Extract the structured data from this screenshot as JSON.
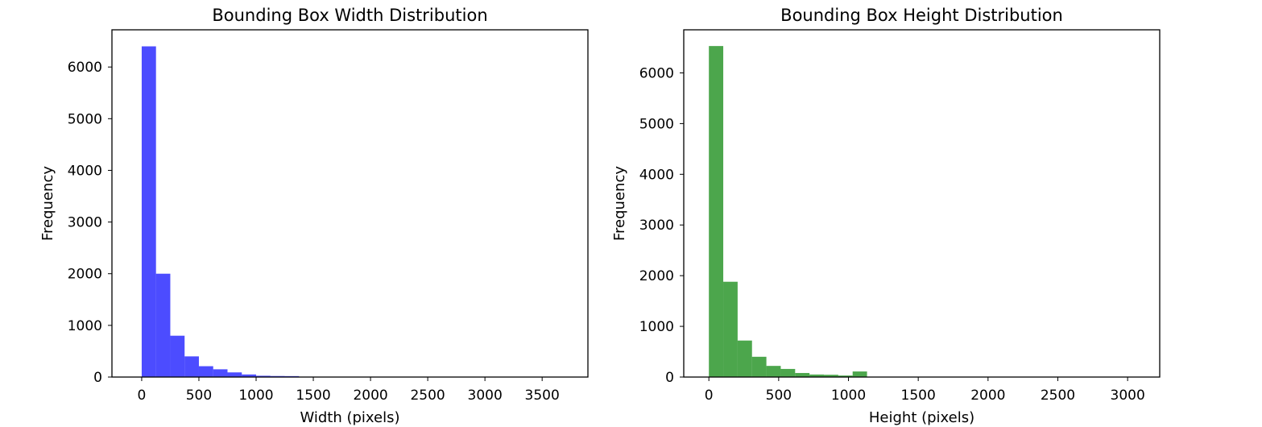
{
  "chart_data": [
    {
      "type": "bar",
      "title": "Bounding Box Width Distribution",
      "xlabel": "Width (pixels)",
      "ylabel": "Frequency",
      "xlim": [
        -260,
        3900
      ],
      "ylim": [
        0,
        6720
      ],
      "xticks": [
        0,
        500,
        1000,
        1500,
        2000,
        2500,
        3000,
        3500
      ],
      "yticks": [
        0,
        1000,
        2000,
        3000,
        4000,
        5000,
        6000
      ],
      "bin_width": 125,
      "bin_start": 0,
      "values": [
        6400,
        2000,
        800,
        400,
        210,
        150,
        90,
        50,
        25,
        20,
        18,
        8,
        5,
        3,
        2,
        2,
        1,
        1,
        1,
        1,
        1,
        1,
        1,
        1,
        1,
        1,
        1,
        1,
        1,
        1
      ],
      "color": "#0000ff",
      "opacity": 0.7,
      "grid": false,
      "legend": "none"
    },
    {
      "type": "bar",
      "title": "Bounding Box Height Distribution",
      "xlabel": "Height (pixels)",
      "ylabel": "Frequency",
      "xlim": [
        -180,
        3230
      ],
      "ylim": [
        0,
        6850
      ],
      "xticks": [
        0,
        500,
        1000,
        1500,
        2000,
        2500,
        3000
      ],
      "yticks": [
        0,
        1000,
        2000,
        3000,
        4000,
        5000,
        6000
      ],
      "bin_width": 103,
      "bin_start": 0,
      "values": [
        6530,
        1880,
        720,
        400,
        220,
        160,
        80,
        50,
        45,
        30,
        110,
        3,
        2,
        2,
        1,
        1,
        1,
        1,
        1,
        1,
        1,
        1,
        1,
        1,
        1,
        1,
        1,
        1,
        1,
        1
      ],
      "color": "#008000",
      "opacity": 0.7,
      "grid": false,
      "legend": "none"
    }
  ]
}
